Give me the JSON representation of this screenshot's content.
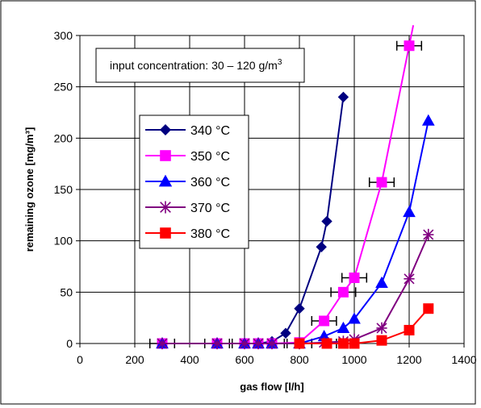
{
  "chart_data": {
    "type": "line",
    "title": "",
    "xlabel": "gas flow [l/h]",
    "ylabel": "remaining ozone [mg/m³]",
    "xlim": [
      0,
      1400
    ],
    "ylim": [
      0,
      300
    ],
    "xticks": [
      0,
      200,
      400,
      600,
      800,
      1000,
      1200,
      1400
    ],
    "yticks": [
      0,
      50,
      100,
      150,
      200,
      250,
      300
    ],
    "grid": true,
    "legend_position": "left-center",
    "annotation": {
      "prefix": "input concentration: 30 – 120 g/m",
      "sup": "3"
    },
    "series": [
      {
        "name": "340 °C",
        "color": "#000080",
        "marker": "diamond",
        "x": [
          300,
          500,
          600,
          650,
          700,
          750,
          800,
          880,
          900,
          960
        ],
        "y": [
          0,
          0,
          0,
          0,
          2,
          10,
          34,
          94,
          119,
          240
        ]
      },
      {
        "name": "350 °C",
        "color": "#ff00ff",
        "marker": "square",
        "x": [
          300,
          500,
          600,
          650,
          700,
          800,
          890,
          960,
          1000,
          1100,
          1200,
          1215
        ],
        "y": [
          0,
          0,
          0,
          0,
          0,
          1,
          22,
          50,
          64,
          157,
          290,
          310
        ],
        "xerr": [
          0,
          0,
          0,
          0,
          0,
          0,
          45,
          45,
          45,
          45,
          45,
          0
        ]
      },
      {
        "name": "360 °C",
        "color": "#0000ff",
        "marker": "triangle",
        "x": [
          300,
          500,
          600,
          650,
          700,
          800,
          890,
          960,
          1000,
          1100,
          1200,
          1270
        ],
        "y": [
          0,
          0,
          0,
          0,
          0,
          0,
          7,
          15,
          24,
          59,
          128,
          217
        ]
      },
      {
        "name": "370 °C",
        "color": "#800080",
        "marker": "star",
        "x": [
          300,
          500,
          600,
          650,
          700,
          800,
          890,
          960,
          1000,
          1100,
          1200,
          1270
        ],
        "y": [
          0,
          0,
          0,
          0,
          0,
          0,
          1,
          2,
          4,
          15,
          63,
          106
        ]
      },
      {
        "name": "380 °C",
        "color": "#ff0000",
        "marker": "square",
        "x": [
          800,
          900,
          960,
          1000,
          1100,
          1200,
          1270
        ],
        "y": [
          0,
          0,
          0,
          0,
          3,
          13,
          34
        ]
      }
    ],
    "baseline_xerr": {
      "color": "#000000",
      "x": [
        300,
        500,
        600,
        650,
        700,
        750,
        800,
        890
      ],
      "y": [
        0,
        0,
        0,
        0,
        0,
        0,
        0,
        0
      ],
      "xerr": 45
    }
  }
}
